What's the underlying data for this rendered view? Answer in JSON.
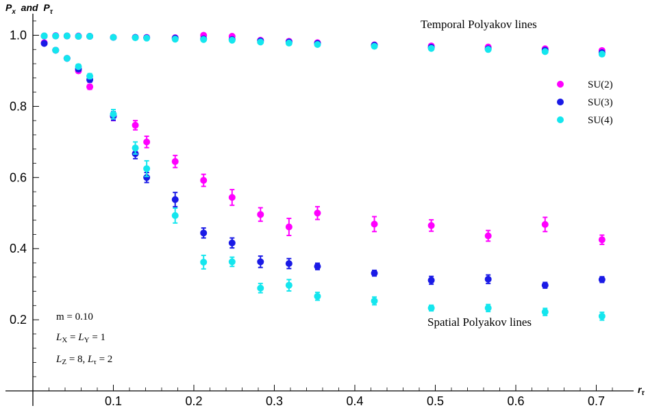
{
  "chart_data": {
    "type": "scatter",
    "title": "",
    "ylabel": "P_x  and P_τ",
    "ylabel_parts": [
      "P",
      "x",
      "  and  ",
      "P",
      "τ"
    ],
    "xlabel": "r_τ",
    "xlabel_parts": [
      "r",
      "τ"
    ],
    "xlim": [
      0.0,
      0.725
    ],
    "ylim": [
      0.0,
      1.05
    ],
    "xticks": [
      0.1,
      0.2,
      0.3,
      0.4,
      0.5,
      0.6,
      0.7
    ],
    "xtick_labels": [
      "0.1",
      "0.2",
      "0.3",
      "0.4",
      "0.5",
      "0.6",
      "0.7"
    ],
    "yticks": [
      0.2,
      0.4,
      0.6,
      0.8,
      1.0
    ],
    "ytick_labels": [
      "0.2",
      "0.4",
      "0.6",
      "0.8",
      "1.0"
    ],
    "grid": false,
    "legend_position": "right",
    "annotations": {
      "temporal": "Temporal Polyakov lines",
      "spatial": "Spatial Polyakov lines"
    },
    "params": {
      "m": "m = 0.10",
      "lxly_L": "L",
      "lxly_sub1": "X",
      "lxly_eq": " = ",
      "lxly_L2": "L",
      "lxly_sub2": "Y",
      "lxly_val": " = 1",
      "lz_L": "L",
      "lz_sub": "Z",
      "lz_eq": " = 8, ",
      "lt_L": "L",
      "lt_sub": "τ",
      "lt_val": " = 2"
    },
    "series": [
      {
        "name": "SU(2)",
        "color": "#ff00ff",
        "temporal": {
          "x": [
            0.0141,
            0.0283,
            0.0424,
            0.0566,
            0.0707,
            0.1,
            0.1273,
            0.1414,
            0.1768,
            0.2121,
            0.2475,
            0.2828,
            0.3182,
            0.3536,
            0.4243,
            0.495,
            0.5657,
            0.6364,
            0.7071
          ],
          "y": [
            0.998,
            0.999,
            0.998,
            0.998,
            0.997,
            0.994,
            0.994,
            0.994,
            0.993,
            1.0,
            0.997,
            0.986,
            0.983,
            0.979,
            0.973,
            0.97,
            0.967,
            0.962,
            0.957
          ],
          "err": [
            0,
            0,
            0,
            0,
            0,
            0,
            0,
            0,
            0,
            0,
            0,
            0,
            0,
            0,
            0,
            0,
            0,
            0,
            0
          ]
        },
        "spatial": {
          "x": [
            0.0141,
            0.0283,
            0.0424,
            0.0566,
            0.0707,
            0.1,
            0.1273,
            0.1414,
            0.1768,
            0.2121,
            0.2475,
            0.2828,
            0.3182,
            0.3536,
            0.4243,
            0.495,
            0.5657,
            0.6364,
            0.7071
          ],
          "y": [
            0.979,
            0.958,
            0.935,
            0.9,
            0.855,
            0.772,
            0.747,
            0.7,
            0.645,
            0.592,
            0.544,
            0.496,
            0.461,
            0.5,
            0.469,
            0.465,
            0.436,
            0.468,
            0.425
          ],
          "err": [
            0.004,
            0.004,
            0.005,
            0.006,
            0.007,
            0.012,
            0.013,
            0.016,
            0.017,
            0.017,
            0.022,
            0.019,
            0.024,
            0.018,
            0.021,
            0.016,
            0.015,
            0.02,
            0.013
          ]
        }
      },
      {
        "name": "SU(3)",
        "color": "#1a1ae6",
        "temporal": {
          "x": [
            0.0141,
            0.0283,
            0.0424,
            0.0566,
            0.0707,
            0.1,
            0.1273,
            0.1414,
            0.1768,
            0.2121,
            0.2475,
            0.2828,
            0.3182,
            0.3536,
            0.4243,
            0.495,
            0.5657,
            0.6364,
            0.7071
          ],
          "y": [
            0.998,
            0.998,
            0.998,
            0.997,
            0.997,
            0.994,
            0.994,
            0.993,
            0.992,
            0.99,
            0.988,
            0.984,
            0.981,
            0.977,
            0.972,
            0.966,
            0.962,
            0.958,
            0.951
          ],
          "err": [
            0,
            0,
            0,
            0,
            0,
            0,
            0,
            0,
            0,
            0,
            0,
            0,
            0,
            0,
            0,
            0,
            0,
            0,
            0
          ]
        },
        "spatial": {
          "x": [
            0.0141,
            0.0283,
            0.0424,
            0.0566,
            0.0707,
            0.1,
            0.1273,
            0.1414,
            0.1768,
            0.2121,
            0.2475,
            0.2828,
            0.3182,
            0.3536,
            0.4243,
            0.495,
            0.5657,
            0.6364,
            0.7071
          ],
          "y": [
            0.977,
            0.958,
            0.935,
            0.905,
            0.875,
            0.773,
            0.667,
            0.6,
            0.538,
            0.444,
            0.416,
            0.363,
            0.358,
            0.35,
            0.331,
            0.311,
            0.314,
            0.297,
            0.313
          ],
          "err": [
            0.004,
            0.004,
            0.005,
            0.006,
            0.007,
            0.012,
            0.014,
            0.014,
            0.02,
            0.014,
            0.014,
            0.016,
            0.014,
            0.009,
            0.008,
            0.011,
            0.012,
            0.008,
            0.008
          ]
        }
      },
      {
        "name": "SU(4)",
        "color": "#14e6ee",
        "temporal": {
          "x": [
            0.0141,
            0.0283,
            0.0424,
            0.0566,
            0.0707,
            0.1,
            0.1273,
            0.1414,
            0.1768,
            0.2121,
            0.2475,
            0.2828,
            0.3182,
            0.3536,
            0.4243,
            0.495,
            0.5657,
            0.6364,
            0.7071
          ],
          "y": [
            0.998,
            0.998,
            0.998,
            0.997,
            0.997,
            0.994,
            0.993,
            0.992,
            0.989,
            0.988,
            0.986,
            0.981,
            0.978,
            0.974,
            0.969,
            0.963,
            0.96,
            0.954,
            0.947
          ],
          "err": [
            0,
            0,
            0,
            0,
            0,
            0,
            0,
            0,
            0,
            0,
            0,
            0,
            0,
            0,
            0,
            0,
            0,
            0,
            0
          ]
        },
        "spatial": {
          "x": [
            0.0141,
            0.0283,
            0.0424,
            0.0566,
            0.0707,
            0.1,
            0.1273,
            0.1414,
            0.1768,
            0.2121,
            0.2475,
            0.2828,
            0.3182,
            0.3536,
            0.4243,
            0.495,
            0.5657,
            0.6364,
            0.7071
          ],
          "y": [
            0.998,
            0.958,
            0.935,
            0.912,
            0.885,
            0.778,
            0.683,
            0.625,
            0.493,
            0.362,
            0.363,
            0.289,
            0.297,
            0.266,
            0.253,
            0.233,
            0.233,
            0.222,
            0.21
          ],
          "err": [
            0.004,
            0.004,
            0.005,
            0.006,
            0.007,
            0.013,
            0.017,
            0.022,
            0.021,
            0.019,
            0.013,
            0.013,
            0.016,
            0.011,
            0.011,
            0.008,
            0.01,
            0.01,
            0.011
          ]
        }
      }
    ]
  }
}
